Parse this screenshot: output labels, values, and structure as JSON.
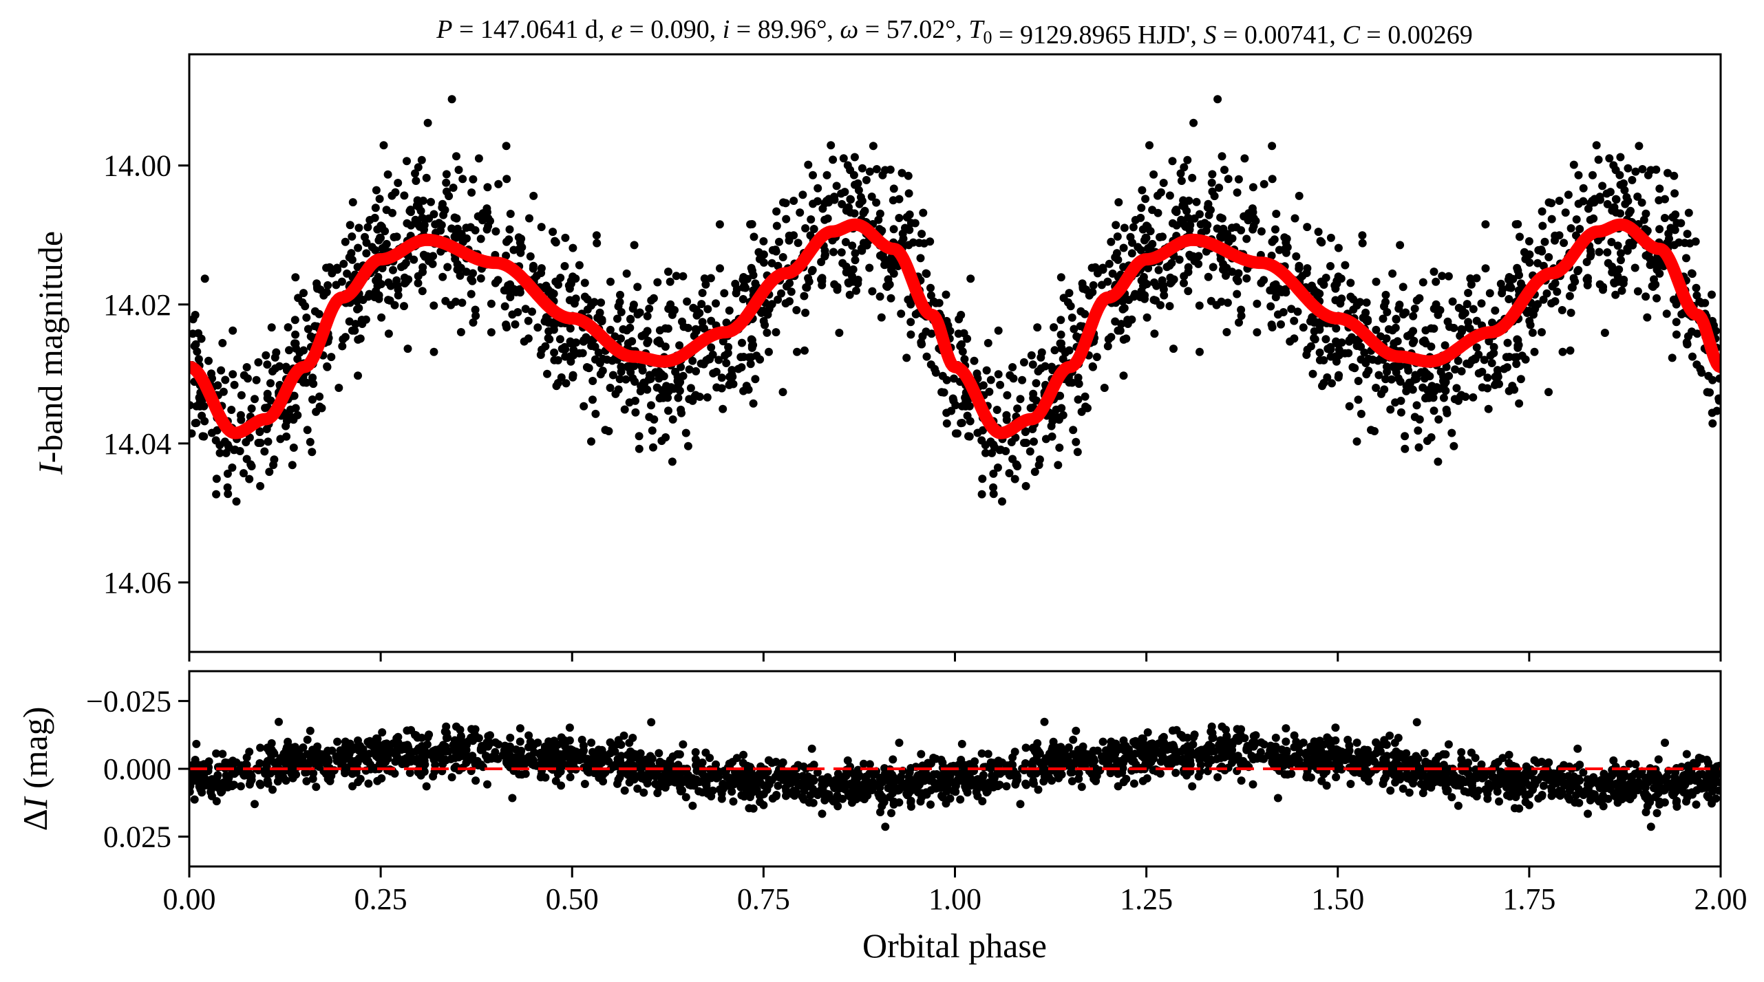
{
  "title": "P = 147.0641 d, e = 0.090, i = 89.96°, ω = 57.02°, T0 = 9129.8965 HJD', S = 0.00741, C = 0.00269",
  "chart_data": [
    {
      "type": "scatter",
      "panel": "top",
      "ylabel": "I-band magnitude",
      "xlim": [
        0.0,
        2.0
      ],
      "ylim": [
        14.07,
        13.984
      ],
      "y_inverted": true,
      "yticks": [
        14.0,
        14.02,
        14.04,
        14.06
      ],
      "ytick_labels": [
        "14.00",
        "14.02",
        "14.04",
        "14.06"
      ],
      "xticks": [
        0.0,
        0.25,
        0.5,
        0.75,
        1.0,
        1.25,
        1.5,
        1.75,
        2.0
      ],
      "series": [
        {
          "role": "observations",
          "color": "#000000",
          "n_points": 2600,
          "scatter_sigma": 0.0055
        },
        {
          "role": "model",
          "color": "#ff0000",
          "phase": [
            0.0,
            0.06,
            0.1,
            0.15,
            0.2,
            0.25,
            0.31,
            0.4,
            0.5,
            0.58,
            0.62,
            0.7,
            0.78,
            0.84,
            0.87,
            0.92,
            0.97,
            1.0,
            1.06,
            1.1,
            1.15,
            1.2,
            1.25,
            1.31,
            1.4,
            1.5,
            1.58,
            1.62,
            1.7,
            1.78,
            1.84,
            1.87,
            1.92,
            1.97,
            2.0
          ],
          "mag": [
            14.029,
            14.0385,
            14.0365,
            14.029,
            14.019,
            14.0135,
            14.0107,
            14.014,
            14.022,
            14.0275,
            14.0282,
            14.024,
            14.0155,
            14.0095,
            14.0085,
            14.012,
            14.0215,
            14.029,
            14.0385,
            14.0365,
            14.029,
            14.019,
            14.0135,
            14.0107,
            14.014,
            14.022,
            14.0275,
            14.0282,
            14.024,
            14.0155,
            14.0095,
            14.0085,
            14.012,
            14.0215,
            14.029
          ]
        }
      ]
    },
    {
      "type": "scatter",
      "panel": "bottom",
      "xlabel": "Orbital phase",
      "ylabel": "ΔI (mag)",
      "xlim": [
        0.0,
        2.0
      ],
      "ylim": [
        0.036,
        -0.036
      ],
      "y_inverted": true,
      "yticks": [
        -0.025,
        0.0,
        0.025
      ],
      "ytick_labels": [
        "−0.025",
        "0.000",
        "0.025"
      ],
      "xticks": [
        0.0,
        0.25,
        0.5,
        0.75,
        1.0,
        1.25,
        1.5,
        1.75,
        2.0
      ],
      "xtick_labels": [
        "0.00",
        "0.25",
        "0.50",
        "0.75",
        "1.00",
        "1.25",
        "1.50",
        "1.75",
        "2.00"
      ],
      "zero_line": {
        "y": 0.0,
        "color": "#ff0000",
        "style": "dashed"
      },
      "series": [
        {
          "role": "residuals",
          "color": "#000000",
          "n_points": 2600,
          "scatter_sigma": 0.0075
        }
      ]
    }
  ],
  "colors": {
    "points": "#000000",
    "model": "#ff0000",
    "axes": "#000000",
    "background": "#ffffff"
  }
}
